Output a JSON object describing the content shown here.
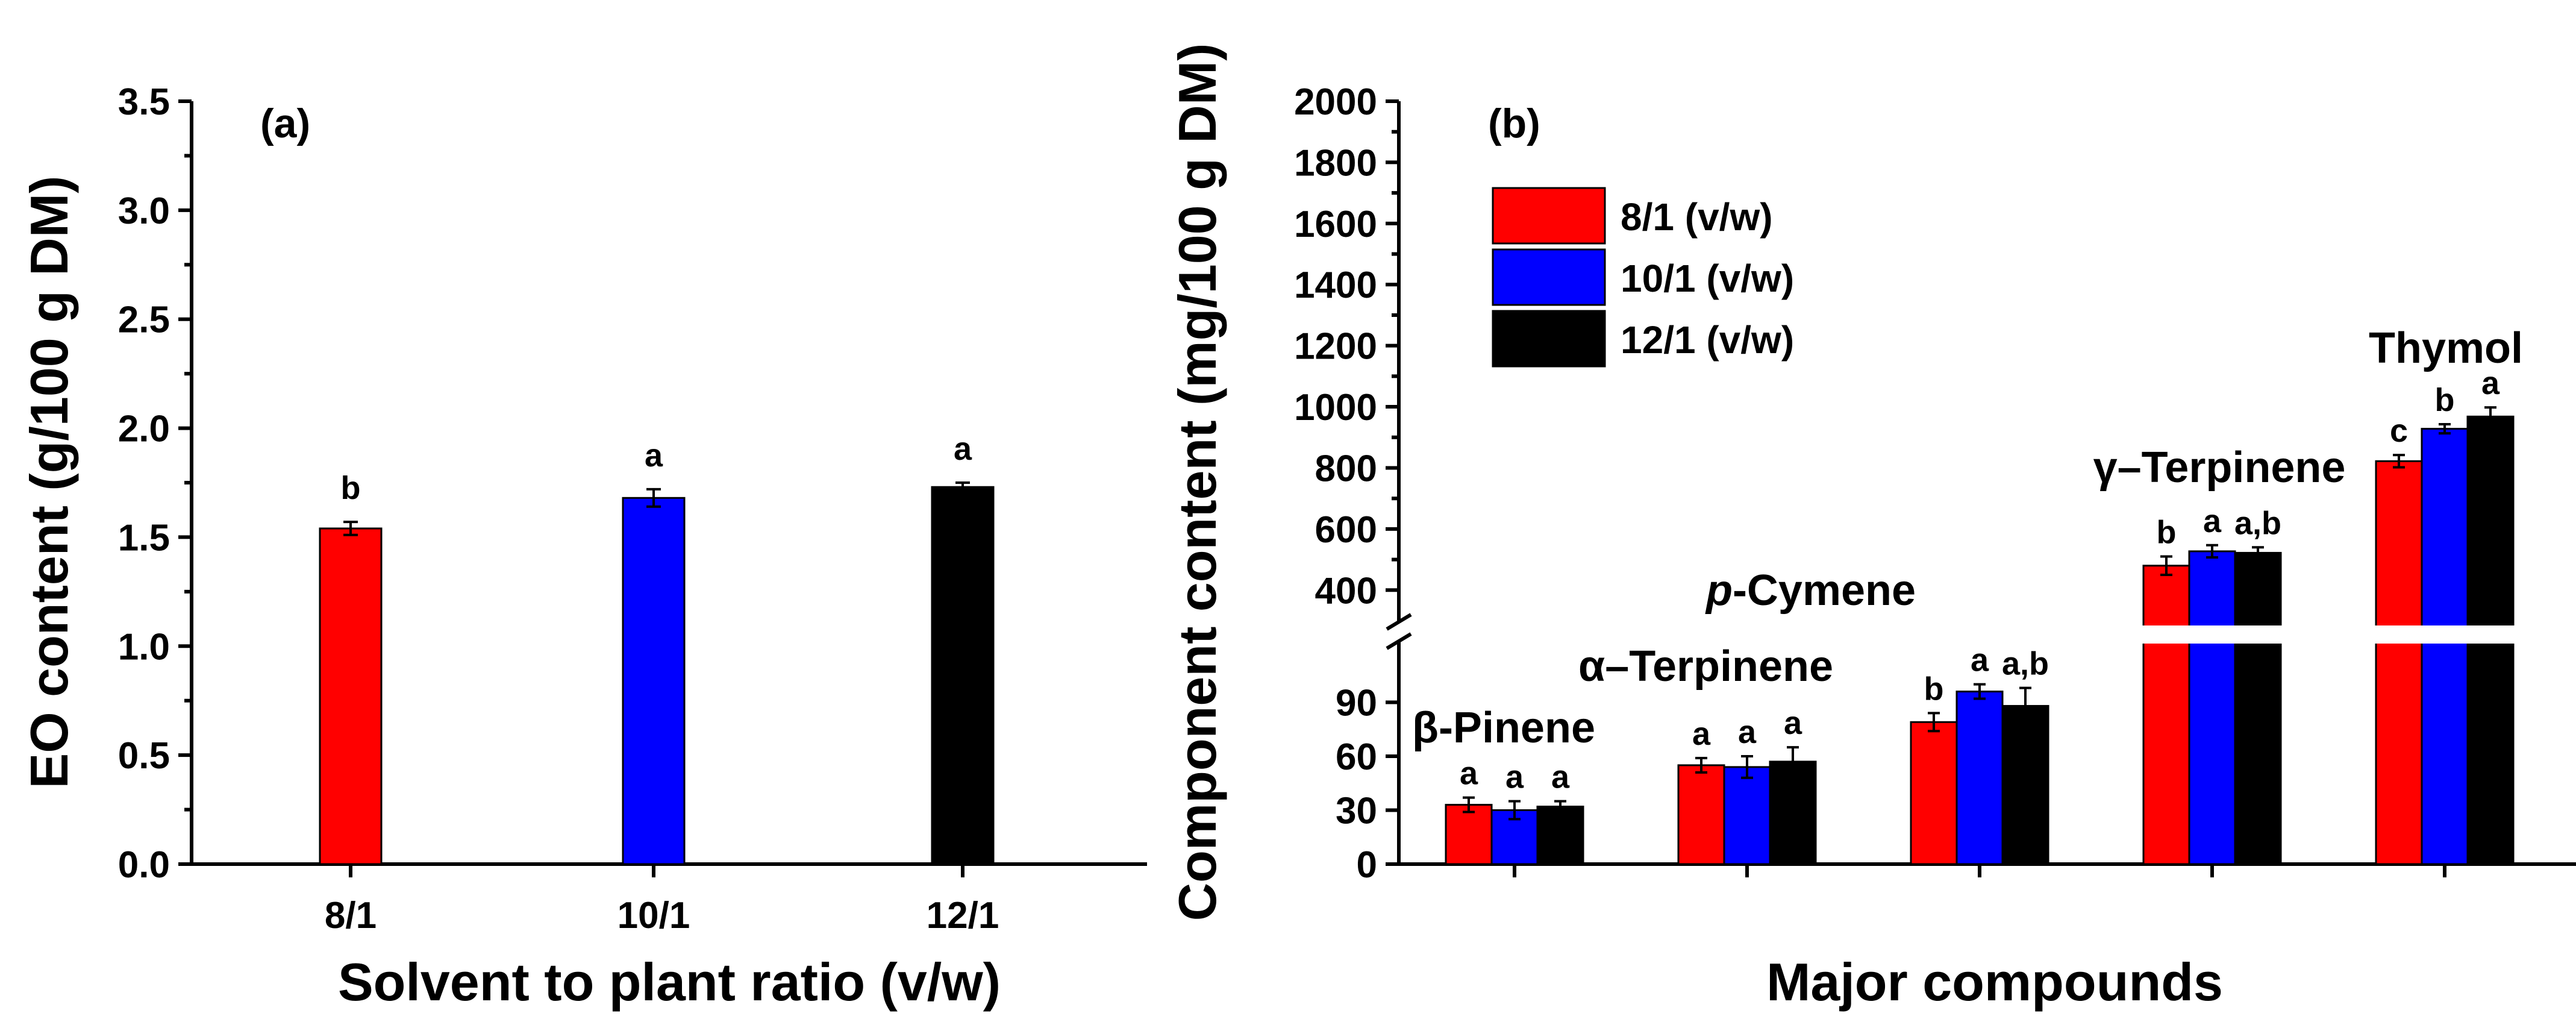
{
  "chart_data": [
    {
      "type": "bar",
      "panel_label": "(a)",
      "xlabel": "Solvent to plant ratio (v/w)",
      "ylabel": "EO content (g/100 g DM)",
      "categories": [
        "8/1",
        "10/1",
        "12/1"
      ],
      "values": [
        1.54,
        1.68,
        1.73
      ],
      "errors": [
        0.03,
        0.04,
        0.02
      ],
      "significance": [
        "b",
        "a",
        "a"
      ],
      "colors": [
        "#ff0000",
        "#0000ff",
        "#000000"
      ],
      "ylim": [
        0,
        3.5
      ],
      "yticks": [
        "0.0",
        "0.5",
        "1.0",
        "1.5",
        "2.0",
        "2.5",
        "3.0",
        "3.5"
      ]
    },
    {
      "type": "bar",
      "panel_label": "(b)",
      "xlabel": "Major compounds",
      "ylabel": "Component content (mg/100 g DM)",
      "categories": [
        "β-Pinene",
        "α–Terpinene",
        "p-Cymene",
        "γ–Terpinene",
        "Thymol"
      ],
      "category_italic_prefix": [
        "",
        "",
        "p",
        "",
        ""
      ],
      "category_rest": [
        "β-Pinene",
        "α–Terpinene",
        "-Cymene",
        "γ–Terpinene",
        "Thymol"
      ],
      "series": [
        {
          "name": "8/1 (v/w)",
          "color": "#ff0000",
          "values": [
            33,
            55,
            79,
            480,
            822
          ],
          "errors": [
            4,
            4,
            5,
            30,
            20
          ],
          "significance": [
            "a",
            "a",
            "b",
            "b",
            "c"
          ]
        },
        {
          "name": "10/1 (v/w)",
          "color": "#0000ff",
          "values": [
            30,
            54,
            96,
            527,
            928
          ],
          "errors": [
            5,
            6,
            4,
            20,
            15
          ],
          "significance": [
            "a",
            "a",
            "a",
            "a",
            "b"
          ]
        },
        {
          "name": "12/1 (v/w)",
          "color": "#000000",
          "values": [
            32,
            57,
            88,
            522,
            968
          ],
          "errors": [
            3,
            8,
            10,
            18,
            30
          ],
          "significance": [
            "a",
            "a",
            "a,b",
            "a,b",
            "a"
          ]
        }
      ],
      "y_axis_break": {
        "lower_range": [
          0,
          120
        ],
        "upper_range": [
          300,
          2000
        ]
      },
      "yticks_lower": [
        "0",
        "30",
        "60",
        "90"
      ],
      "yticks_upper": [
        "400",
        "600",
        "800",
        "1000",
        "1200",
        "1400",
        "1600",
        "1800",
        "2000"
      ]
    }
  ]
}
